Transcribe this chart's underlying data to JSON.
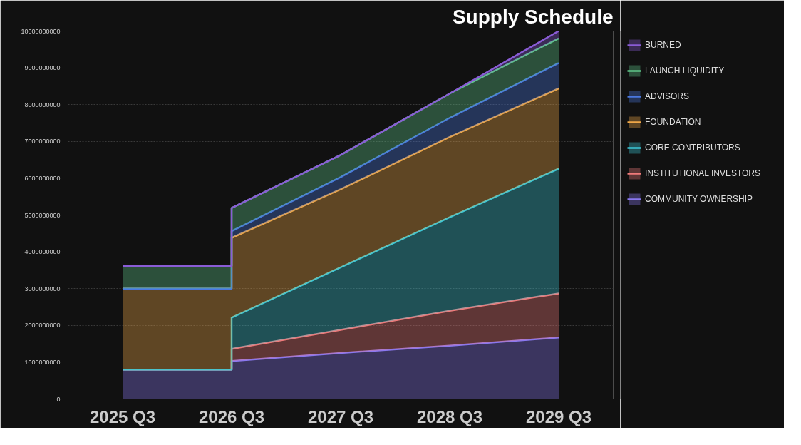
{
  "chart_data": {
    "type": "area",
    "stacked": true,
    "title": "Supply Schedule",
    "x": [
      "2025-07",
      "2026-07",
      "2026-07",
      "2027-07",
      "2028-07",
      "2029-07"
    ],
    "xlim": [
      "2025-01",
      "2030-01"
    ],
    "xticks": [
      {
        "value": "2025-07",
        "label": "2025 Q3"
      },
      {
        "value": "2026-07",
        "label": "2026 Q3"
      },
      {
        "value": "2027-07",
        "label": "2027 Q3"
      },
      {
        "value": "2028-07",
        "label": "2028 Q3"
      },
      {
        "value": "2029-07",
        "label": "2029 Q3"
      }
    ],
    "ylim": [
      0,
      10000000000
    ],
    "yticks": [
      0,
      1000000000,
      2000000000,
      3000000000,
      4000000000,
      5000000000,
      6000000000,
      7000000000,
      8000000000,
      9000000000,
      10000000000
    ],
    "grid": true,
    "legend": "right",
    "series": [
      {
        "name": "COMMUNITY OWNERSHIP",
        "color": "#8a78f0",
        "values": [
          800000000,
          800000000,
          1030000000,
          1250000000,
          1450000000,
          1670000000
        ]
      },
      {
        "name": "INSTITUTIONAL INVESTORS",
        "color": "#f07a7a",
        "values": [
          0,
          0,
          330000000,
          630000000,
          950000000,
          1200000000
        ]
      },
      {
        "name": "CORE CONTRIBUTORS",
        "color": "#3cc8d8",
        "values": [
          0,
          0,
          850000000,
          1700000000,
          2540000000,
          3390000000
        ]
      },
      {
        "name": "FOUNDATION",
        "color": "#f0a848",
        "values": [
          2200000000,
          2200000000,
          2170000000,
          2120000000,
          2180000000,
          2180000000
        ]
      },
      {
        "name": "ADVISORS",
        "color": "#4a78e0",
        "values": [
          0,
          0,
          180000000,
          330000000,
          520000000,
          690000000
        ]
      },
      {
        "name": "LAUNCH LIQUIDITY",
        "color": "#5fc68a",
        "values": [
          620000000,
          620000000,
          630000000,
          600000000,
          660000000,
          670000000
        ]
      },
      {
        "name": "BURNED",
        "color": "#8a5cd6",
        "values": [
          0,
          0,
          0,
          0,
          0,
          200000000
        ]
      }
    ]
  }
}
